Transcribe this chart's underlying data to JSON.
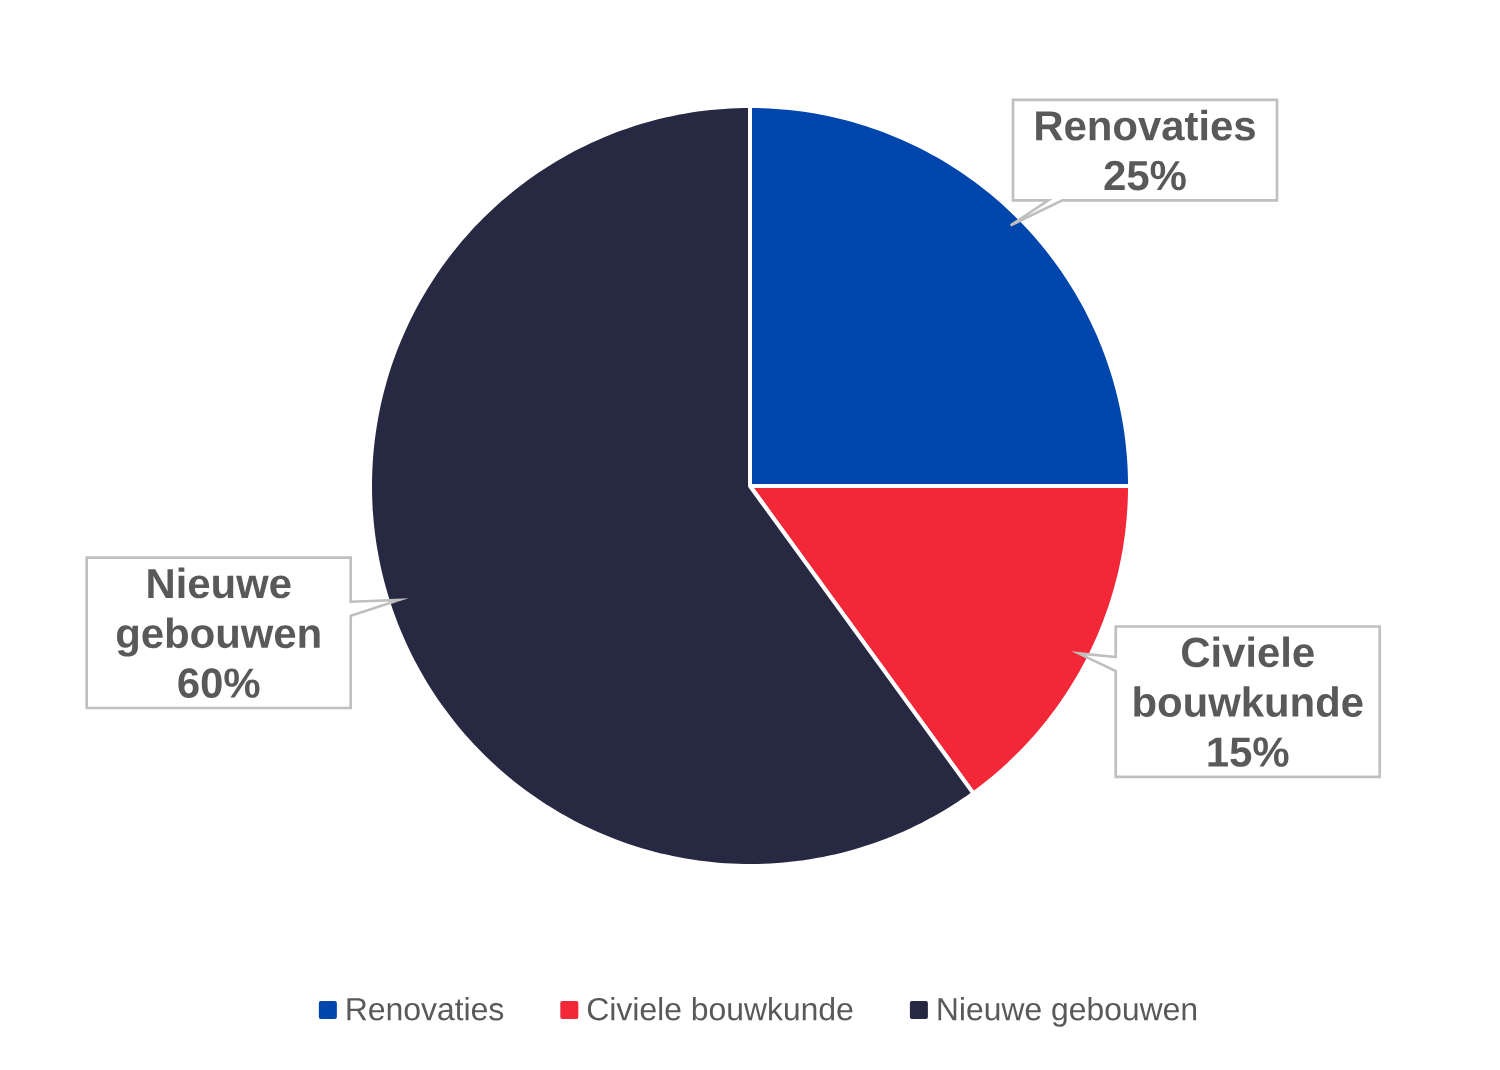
{
  "chart_data": {
    "type": "pie",
    "categories": [
      "Renovaties",
      "Civiele bouwkunde",
      "Nieuwe gebouwen"
    ],
    "values": [
      25,
      15,
      60
    ],
    "value_labels": [
      "25%",
      "15%",
      "60%"
    ],
    "colors": [
      "#0046ad",
      "#f22838",
      "#272842"
    ],
    "legend": "bottom"
  }
}
